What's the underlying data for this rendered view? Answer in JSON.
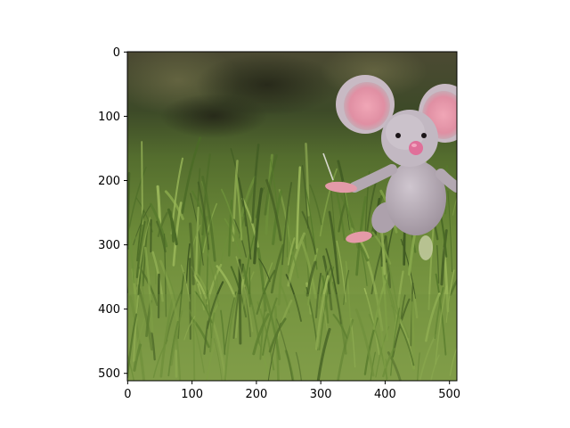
{
  "figure": {
    "image_description_icon": "plush-mouse-in-grass-photo",
    "colors": {
      "background": "#ffffff",
      "grass_dark": "#3f5a22",
      "grass_mid": "#6d8f3a",
      "grass_light": "#9bb85a",
      "bokeh_dark": "#3a3524",
      "mouse_body": "#b9aeb8",
      "mouse_ear_inner": "#e79aac",
      "mouse_nose": "#e0709a"
    },
    "x_ticks": [
      {
        "value": 0,
        "label": "0"
      },
      {
        "value": 100,
        "label": "100"
      },
      {
        "value": 200,
        "label": "200"
      },
      {
        "value": 300,
        "label": "300"
      },
      {
        "value": 400,
        "label": "400"
      },
      {
        "value": 500,
        "label": "500"
      }
    ],
    "y_ticks": [
      {
        "value": 0,
        "label": "0"
      },
      {
        "value": 100,
        "label": "100"
      },
      {
        "value": 200,
        "label": "200"
      },
      {
        "value": 300,
        "label": "300"
      },
      {
        "value": 400,
        "label": "400"
      },
      {
        "value": 500,
        "label": "500"
      }
    ],
    "image_extent": {
      "xmin": -0.5,
      "xmax": 511.5,
      "ymin": -0.5,
      "ymax": 511.5
    }
  }
}
